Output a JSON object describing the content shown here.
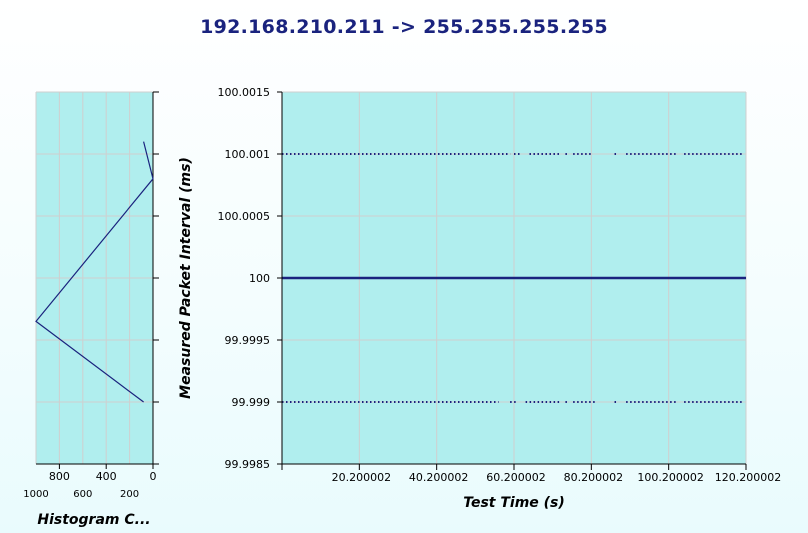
{
  "title": "192.168.210.211 -> 255.255.255.255",
  "colors": {
    "plot_bg": "#b0eeee",
    "line": "#1a237e",
    "grid": "#cfcfcf",
    "title": "#1a237e"
  },
  "chart_data": [
    {
      "type": "line",
      "name": "main",
      "xlabel": "Test Time (s)",
      "ylabel": "Measured Packet Interval (ms)",
      "xlim": [
        0.200002,
        120.200002
      ],
      "ylim": [
        99.9985,
        100.0015
      ],
      "x_ticks": [
        20.200002,
        40.200002,
        60.200002,
        80.200002,
        100.200002,
        120.200002
      ],
      "x_tick_labels": [
        "20.200002",
        "40.200002",
        "60.200002",
        "80.200002",
        "100.200002",
        "120.200002"
      ],
      "y_ticks": [
        99.9985,
        99.999,
        99.9995,
        100,
        100.0005,
        100.001,
        100.0015
      ],
      "y_tick_labels": [
        "99.9985",
        "99.999",
        "99.9995",
        "100",
        "100.0005",
        "100.001",
        "100.0015"
      ],
      "grid": true,
      "series": [
        {
          "style": "solid",
          "y": 100,
          "x_range": [
            0.200002,
            120.200002
          ]
        },
        {
          "style": "dotted",
          "y": 100.001,
          "x_segments": [
            [
              0.2,
              59.2
            ],
            [
              60.2,
              62.2
            ],
            [
              64.2,
              72.2
            ],
            [
              73.5,
              74.2
            ],
            [
              75.5,
              80.5
            ],
            [
              86.2,
              87.2
            ],
            [
              89.2,
              102.2
            ],
            [
              104.2,
              119.2
            ]
          ]
        },
        {
          "style": "dotted",
          "y": 99.999,
          "x_segments": [
            [
              0.2,
              56.2
            ],
            [
              59.2,
              61.2
            ],
            [
              63.2,
              72.2
            ],
            [
              73.5,
              74.2
            ],
            [
              75.5,
              81.5
            ],
            [
              86.2,
              87.2
            ],
            [
              89.2,
              102.2
            ],
            [
              104.2,
              119.2
            ]
          ]
        }
      ]
    },
    {
      "type": "line",
      "name": "histogram",
      "title": "Histogram C...",
      "x_axis_reversed": true,
      "xlim": [
        0,
        1000
      ],
      "x_ticks_top": [
        800,
        400,
        0
      ],
      "x_ticks_bottom": [
        1000,
        600,
        200
      ],
      "ylim": [
        99.9985,
        100.0015
      ],
      "grid": true,
      "points": [
        {
          "count": 80,
          "y": 100.0011
        },
        {
          "count": 0,
          "y": 100.0008
        },
        {
          "count": 1000,
          "y": 99.99965
        },
        {
          "count": 80,
          "y": 99.999
        }
      ]
    }
  ]
}
